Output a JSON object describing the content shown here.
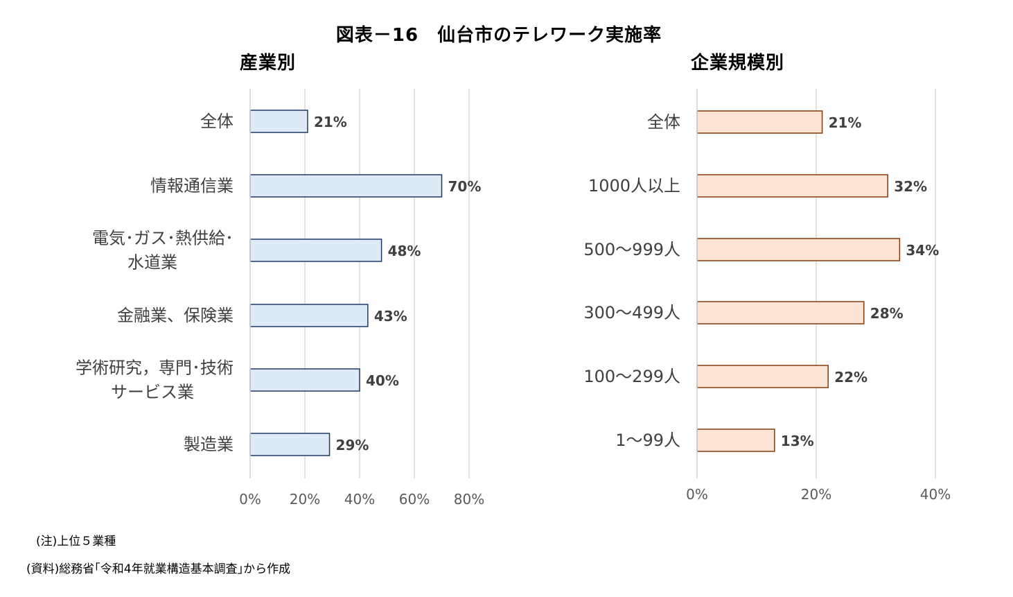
{
  "title": "図表－16　仙台市のテレワーク実施率",
  "notes": {
    "note1": "(注)上位５業種",
    "note2": "(資料)総務省｢令和4年就業構造基本調査｣から作成"
  },
  "colors": {
    "industry_fill": "#DEEAF6",
    "industry_stroke": "#1F3864",
    "size_fill": "#FBE3D6",
    "size_stroke": "#843C0C",
    "grid": "#D9D9D9",
    "axis_text": "#595959",
    "label_text": "#404040"
  },
  "chart_data": [
    {
      "type": "bar",
      "orientation": "horizontal",
      "title": "産業別",
      "categories": [
        [
          "全体"
        ],
        [
          "情報通信業"
        ],
        [
          "電気･ガス･熱供給･",
          "水道業"
        ],
        [
          "金融業、保険業"
        ],
        [
          "学術研究，専門･技術",
          "サービス業"
        ],
        [
          "製造業"
        ]
      ],
      "values": [
        21,
        70,
        48,
        43,
        40,
        29
      ],
      "data_labels": [
        "21%",
        "70%",
        "48%",
        "43%",
        "40%",
        "29%"
      ],
      "xlim": [
        0,
        80
      ],
      "x_ticks": [
        0,
        20,
        40,
        60,
        80
      ],
      "x_tick_labels": [
        "0%",
        "20%",
        "40%",
        "60%",
        "80%"
      ],
      "grid": true
    },
    {
      "type": "bar",
      "orientation": "horizontal",
      "title": "企業規模別",
      "categories": [
        [
          "全体"
        ],
        [
          "1000人以上"
        ],
        [
          "500～999人"
        ],
        [
          "300～499人"
        ],
        [
          "100～299人"
        ],
        [
          "1～99人"
        ]
      ],
      "values": [
        21,
        32,
        34,
        28,
        22,
        13
      ],
      "data_labels": [
        "21%",
        "32%",
        "34%",
        "28%",
        "22%",
        "13%"
      ],
      "xlim": [
        0,
        40
      ],
      "x_ticks": [
        0,
        20,
        40
      ],
      "x_tick_labels": [
        "0%",
        "20%",
        "40%"
      ],
      "grid": true
    }
  ]
}
